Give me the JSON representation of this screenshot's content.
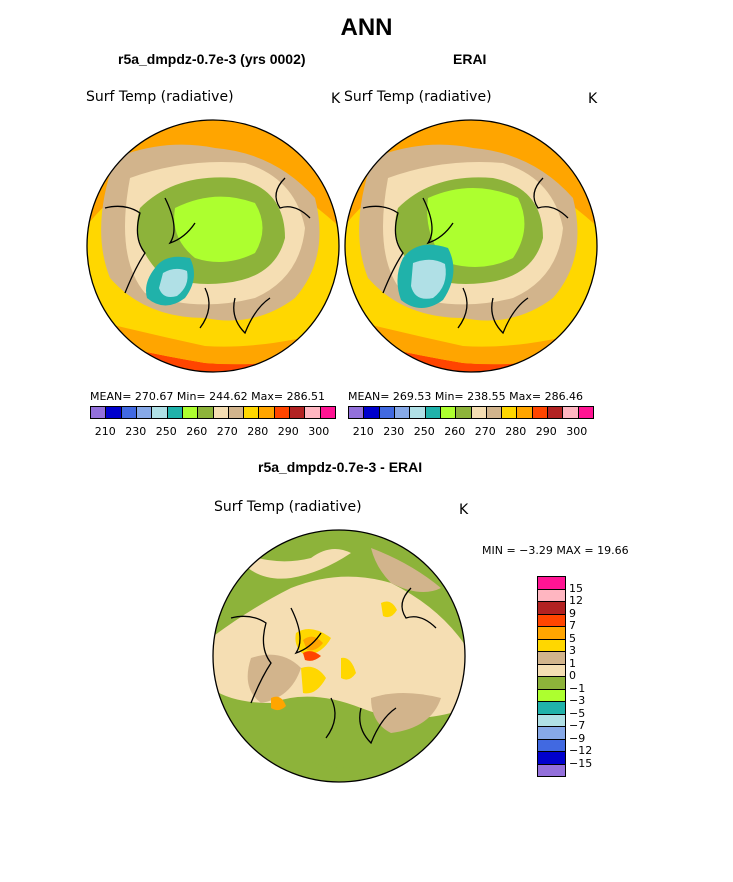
{
  "title": "ANN",
  "panels": {
    "model": {
      "title": "r5a_dmpdz-0.7e-3 (yrs 0002)",
      "variable": "Surf Temp (radiative)",
      "units": "K",
      "stats": "MEAN= 270.67   Min= 244.62   Max= 286.51"
    },
    "obs": {
      "title": "ERAI",
      "variable": "Surf Temp (radiative)",
      "units": "K",
      "stats": "MEAN= 269.53   Min= 238.55   Max= 286.46"
    },
    "diff": {
      "title": "r5a_dmpdz-0.7e-3 - ERAI",
      "variable": "Surf Temp (radiative)",
      "units": "K",
      "minmax": "MIN =   −3.29  MAX =   19.66"
    }
  },
  "colorbar_abs": {
    "colors": [
      "#9370db",
      "#0000cd",
      "#4169e1",
      "#87a9e8",
      "#b0e0e6",
      "#20b2aa",
      "#adff2f",
      "#8db33a",
      "#f5deb3",
      "#d2b48c",
      "#ffd700",
      "#ffa500",
      "#ff4500",
      "#b22222",
      "#ffb6c1",
      "#ff1493"
    ],
    "ticks": [
      "210",
      "230",
      "250",
      "260",
      "270",
      "280",
      "290",
      "300"
    ]
  },
  "colorbar_diff": {
    "colors_top_to_bottom": [
      "#ff1493",
      "#ffb6c1",
      "#b22222",
      "#ff4500",
      "#ffa500",
      "#ffd700",
      "#d2b48c",
      "#f5deb3",
      "#8db33a",
      "#adff2f",
      "#20b2aa",
      "#b0e0e6",
      "#87a9e8",
      "#4169e1",
      "#0000cd",
      "#9370db"
    ],
    "labels": [
      "15",
      "12",
      "9",
      "7",
      "5",
      "3",
      "1",
      "0",
      "−1",
      "−3",
      "−5",
      "−7",
      "−9",
      "−12",
      "−15"
    ]
  }
}
